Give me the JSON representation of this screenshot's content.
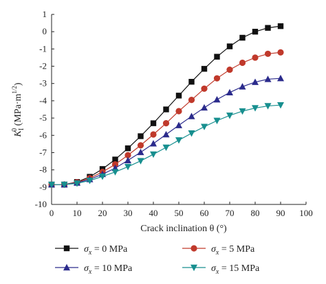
{
  "chart_data": {
    "type": "line",
    "xlabel": "Crack inclination θ (°)",
    "ylabel": "K_I^0 (MPa·m^1/2)",
    "ylabel_parts": {
      "base": "K",
      "sub": "I",
      "sup": "0",
      "unit": " (MPa·m",
      "unit_sup": "1/2",
      "close": ")"
    },
    "xlim": [
      0,
      100
    ],
    "ylim": [
      -10,
      1
    ],
    "xticks": [
      0,
      10,
      20,
      30,
      40,
      50,
      60,
      70,
      80,
      90,
      100
    ],
    "yticks": [
      1,
      0,
      -1,
      -2,
      -3,
      -4,
      -5,
      -6,
      -7,
      -8,
      -9,
      -10
    ],
    "grid": false,
    "legend_position": "bottom",
    "x": [
      0,
      5,
      10,
      15,
      20,
      25,
      30,
      35,
      40,
      45,
      50,
      55,
      60,
      65,
      70,
      75,
      80,
      85,
      90
    ],
    "series": [
      {
        "name": "σx = 0 MPa",
        "legend_symbol": "σ",
        "legend_sub": "x",
        "legend_rest": " = 0 MPa",
        "marker": "square",
        "color": "#111111",
        "values": [
          -8.85,
          -8.85,
          -8.7,
          -8.4,
          -7.95,
          -7.4,
          -6.75,
          -6.05,
          -5.3,
          -4.5,
          -3.7,
          -2.9,
          -2.15,
          -1.45,
          -0.85,
          -0.35,
          0.0,
          0.22,
          0.32
        ]
      },
      {
        "name": "σx = 5 MPa",
        "legend_symbol": "σ",
        "legend_sub": "x",
        "legend_rest": " = 5 MPa",
        "marker": "circle",
        "color": "#c0392b",
        "values": [
          -8.85,
          -8.85,
          -8.72,
          -8.48,
          -8.12,
          -7.68,
          -7.15,
          -6.58,
          -5.95,
          -5.3,
          -4.6,
          -3.95,
          -3.3,
          -2.7,
          -2.2,
          -1.8,
          -1.5,
          -1.28,
          -1.2
        ]
      },
      {
        "name": "σx = 10 MPa",
        "legend_symbol": "σ",
        "legend_sub": "x",
        "legend_rest": " = 10 MPa",
        "marker": "triangle-up",
        "color": "#2b2b8c",
        "values": [
          -8.85,
          -8.85,
          -8.75,
          -8.55,
          -8.25,
          -7.9,
          -7.45,
          -6.98,
          -6.48,
          -5.95,
          -5.42,
          -4.9,
          -4.4,
          -3.93,
          -3.52,
          -3.18,
          -2.92,
          -2.75,
          -2.7
        ]
      },
      {
        "name": "σx = 15 MPa",
        "legend_symbol": "σ",
        "legend_sub": "x",
        "legend_rest": " = 15 MPa",
        "marker": "triangle-down",
        "color": "#178f8f",
        "values": [
          -8.85,
          -8.85,
          -8.78,
          -8.62,
          -8.38,
          -8.12,
          -7.82,
          -7.48,
          -7.1,
          -6.7,
          -6.28,
          -5.88,
          -5.5,
          -5.15,
          -4.85,
          -4.6,
          -4.42,
          -4.3,
          -4.25
        ]
      }
    ]
  }
}
